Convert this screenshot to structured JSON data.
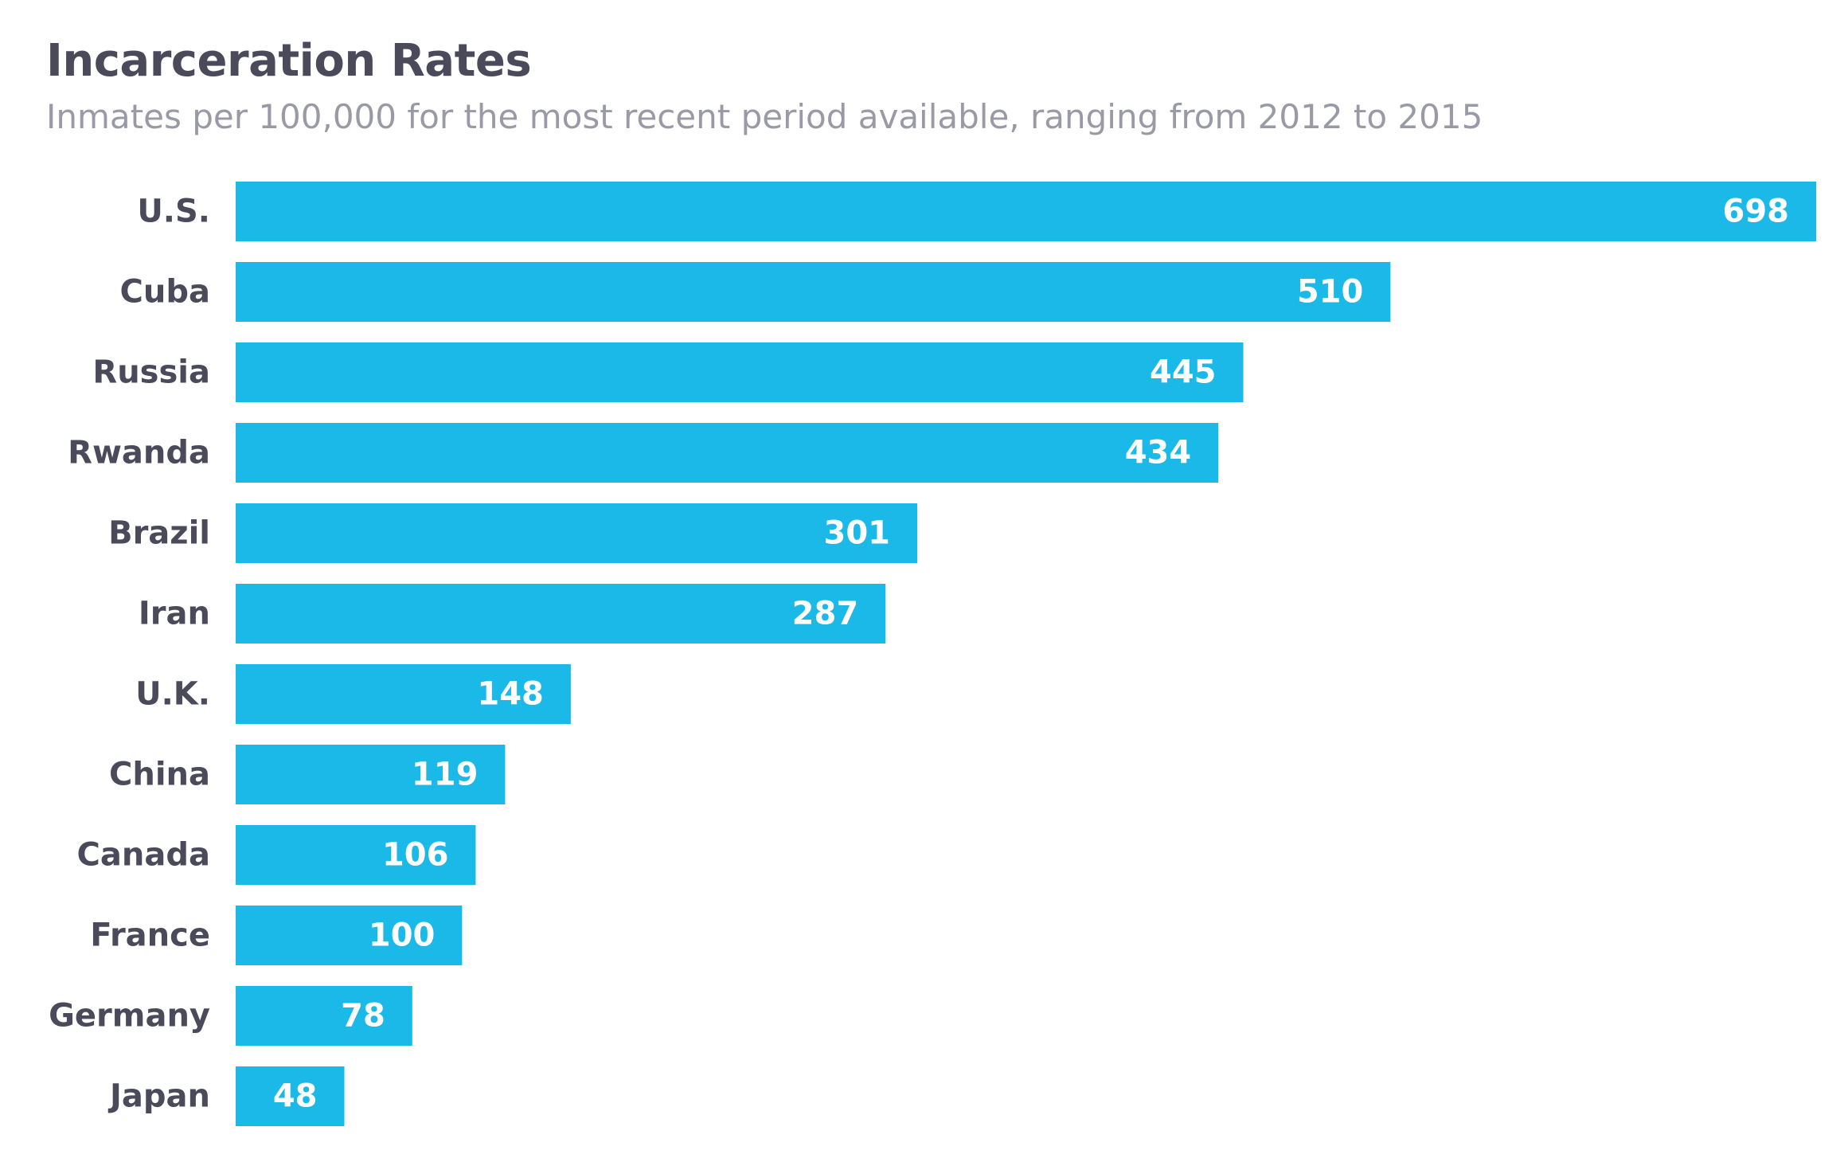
{
  "chart_data": {
    "type": "bar",
    "orientation": "horizontal",
    "title": "Incarceration Rates",
    "subtitle": "Inmates per 100,000 for the most recent period available, ranging from 2012 to 2015",
    "categories": [
      "U.S.",
      "Cuba",
      "Russia",
      "Rwanda",
      "Brazil",
      "Iran",
      "U.K.",
      "China",
      "Canada",
      "France",
      "Germany",
      "Japan"
    ],
    "values": [
      698,
      510,
      445,
      434,
      301,
      287,
      148,
      119,
      106,
      100,
      78,
      48
    ],
    "value_labels": [
      "698",
      "510",
      "445",
      "434",
      "301",
      "287",
      "148",
      "119",
      "106",
      "100",
      "78",
      "48"
    ],
    "xlim": [
      0,
      698
    ],
    "grid": false,
    "legend": "none",
    "bar_color": "#1bb9e8",
    "label_color": "#4a4a5a",
    "value_label_color": "#ffffff"
  }
}
